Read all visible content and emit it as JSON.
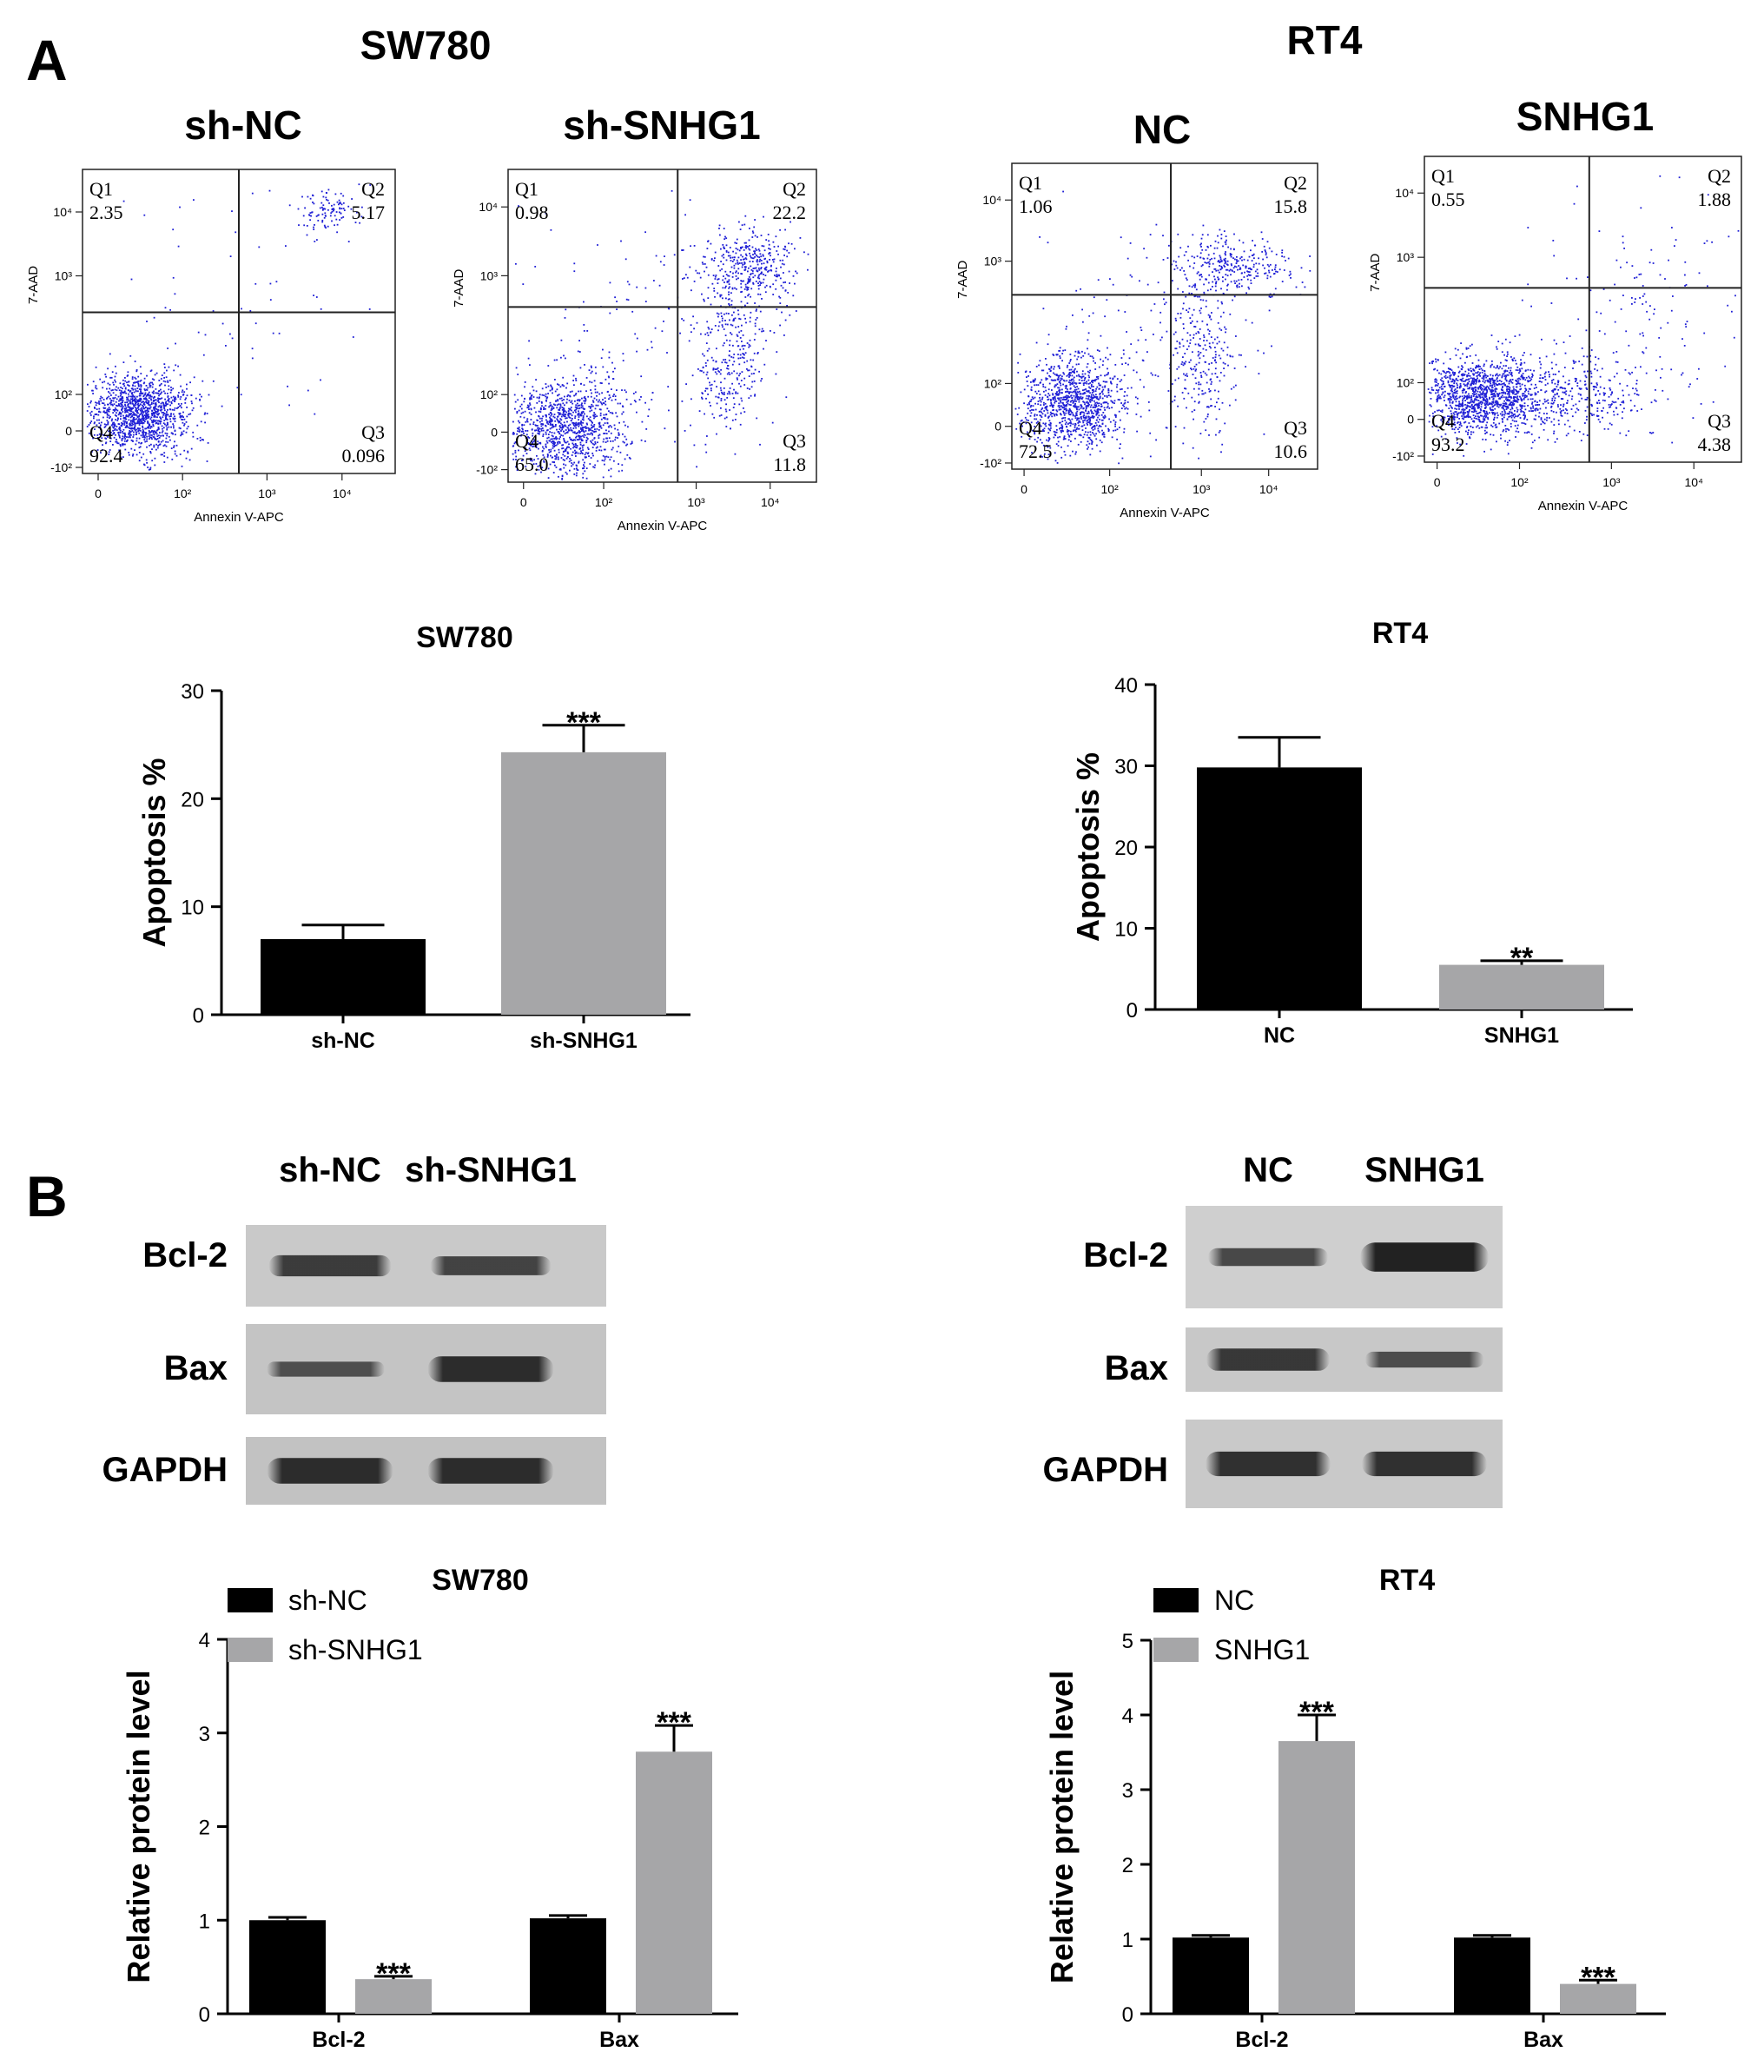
{
  "panels": {
    "a": {
      "label": "A",
      "left_title": "SW780",
      "right_title": "RT4",
      "flow_plots": [
        {
          "title": "sh-NC",
          "xlabel": "Annexin V-APC",
          "ylabel": "7-AAD",
          "quadrants": {
            "Q1": "2.35",
            "Q2": "5.17",
            "Q3": "0.096",
            "Q4": "92.4"
          }
        },
        {
          "title": "sh-SNHG1",
          "xlabel": "Annexin V-APC",
          "ylabel": "7-AAD",
          "quadrants": {
            "Q1": "0.98",
            "Q2": "22.2",
            "Q3": "11.8",
            "Q4": "65.0"
          }
        },
        {
          "title": "NC",
          "xlabel": "Annexin V-APC",
          "ylabel": "7-AAD",
          "quadrants": {
            "Q1": "1.06",
            "Q2": "15.8",
            "Q3": "10.6",
            "Q4": "72.5"
          }
        },
        {
          "title": "SNHG1",
          "xlabel": "Annexin V-APC",
          "ylabel": "7-AAD",
          "quadrants": {
            "Q1": "0.55",
            "Q2": "1.88",
            "Q3": "4.38",
            "Q4": "93.2"
          }
        }
      ],
      "fc_ticks": {
        "x": [
          "0",
          "10²",
          "10³",
          "10⁴"
        ],
        "y": [
          "-10²",
          "0",
          "10²",
          "10³",
          "10⁴"
        ]
      }
    },
    "b": {
      "label": "B",
      "blots": [
        {
          "lanes": [
            "sh-NC",
            "sh-SNHG1"
          ],
          "rows": [
            "Bcl-2",
            "Bax",
            "GAPDH"
          ]
        },
        {
          "lanes": [
            "NC",
            "SNHG1"
          ],
          "rows": [
            "Bcl-2",
            "Bax",
            "GAPDH"
          ]
        }
      ]
    }
  },
  "colors": {
    "control": "#000000",
    "treated": "#a6a6a8",
    "dots": "#1f1fd6"
  },
  "chart_data": [
    {
      "type": "bar",
      "title": "SW780",
      "ylabel": "Apoptosis %",
      "xlabel": "",
      "categories": [
        "sh-NC",
        "sh-SNHG1"
      ],
      "values": [
        7.0,
        24.3
      ],
      "errors": [
        1.3,
        2.5
      ],
      "significance": [
        "",
        "***"
      ],
      "ylim": [
        0,
        30
      ],
      "yticks": [
        0,
        10,
        20,
        30
      ]
    },
    {
      "type": "bar",
      "title": "RT4",
      "ylabel": "Apoptosis %",
      "xlabel": "",
      "categories": [
        "NC",
        "SNHG1"
      ],
      "values": [
        29.8,
        5.5
      ],
      "errors": [
        3.7,
        0.5
      ],
      "significance": [
        "",
        "**"
      ],
      "ylim": [
        0,
        40
      ],
      "yticks": [
        0,
        10,
        20,
        30,
        40
      ]
    },
    {
      "type": "bar",
      "title": "SW780",
      "ylabel": "Relative protein level",
      "xlabel": "",
      "categories": [
        "Bcl-2",
        "Bax"
      ],
      "legend": "top-left",
      "ylim": [
        0,
        4
      ],
      "yticks": [
        0,
        1,
        2,
        3,
        4
      ],
      "series": [
        {
          "name": "sh-NC",
          "values": [
            1.0,
            1.02
          ],
          "errors": [
            0.03,
            0.03
          ],
          "significance": [
            "",
            ""
          ]
        },
        {
          "name": "sh-SNHG1",
          "values": [
            0.37,
            2.8
          ],
          "errors": [
            0.03,
            0.28
          ],
          "significance": [
            "***",
            "***"
          ]
        }
      ]
    },
    {
      "type": "bar",
      "title": "RT4",
      "ylabel": "Relative protein level",
      "xlabel": "",
      "categories": [
        "Bcl-2",
        "Bax"
      ],
      "legend": "top-left",
      "ylim": [
        0,
        5
      ],
      "yticks": [
        0,
        1,
        2,
        3,
        4,
        5
      ],
      "series": [
        {
          "name": "NC",
          "values": [
            1.02,
            1.02
          ],
          "errors": [
            0.03,
            0.03
          ],
          "significance": [
            "",
            ""
          ]
        },
        {
          "name": "SNHG1",
          "values": [
            3.65,
            0.4
          ],
          "errors": [
            0.35,
            0.05
          ],
          "significance": [
            "***",
            "***"
          ]
        }
      ]
    }
  ]
}
